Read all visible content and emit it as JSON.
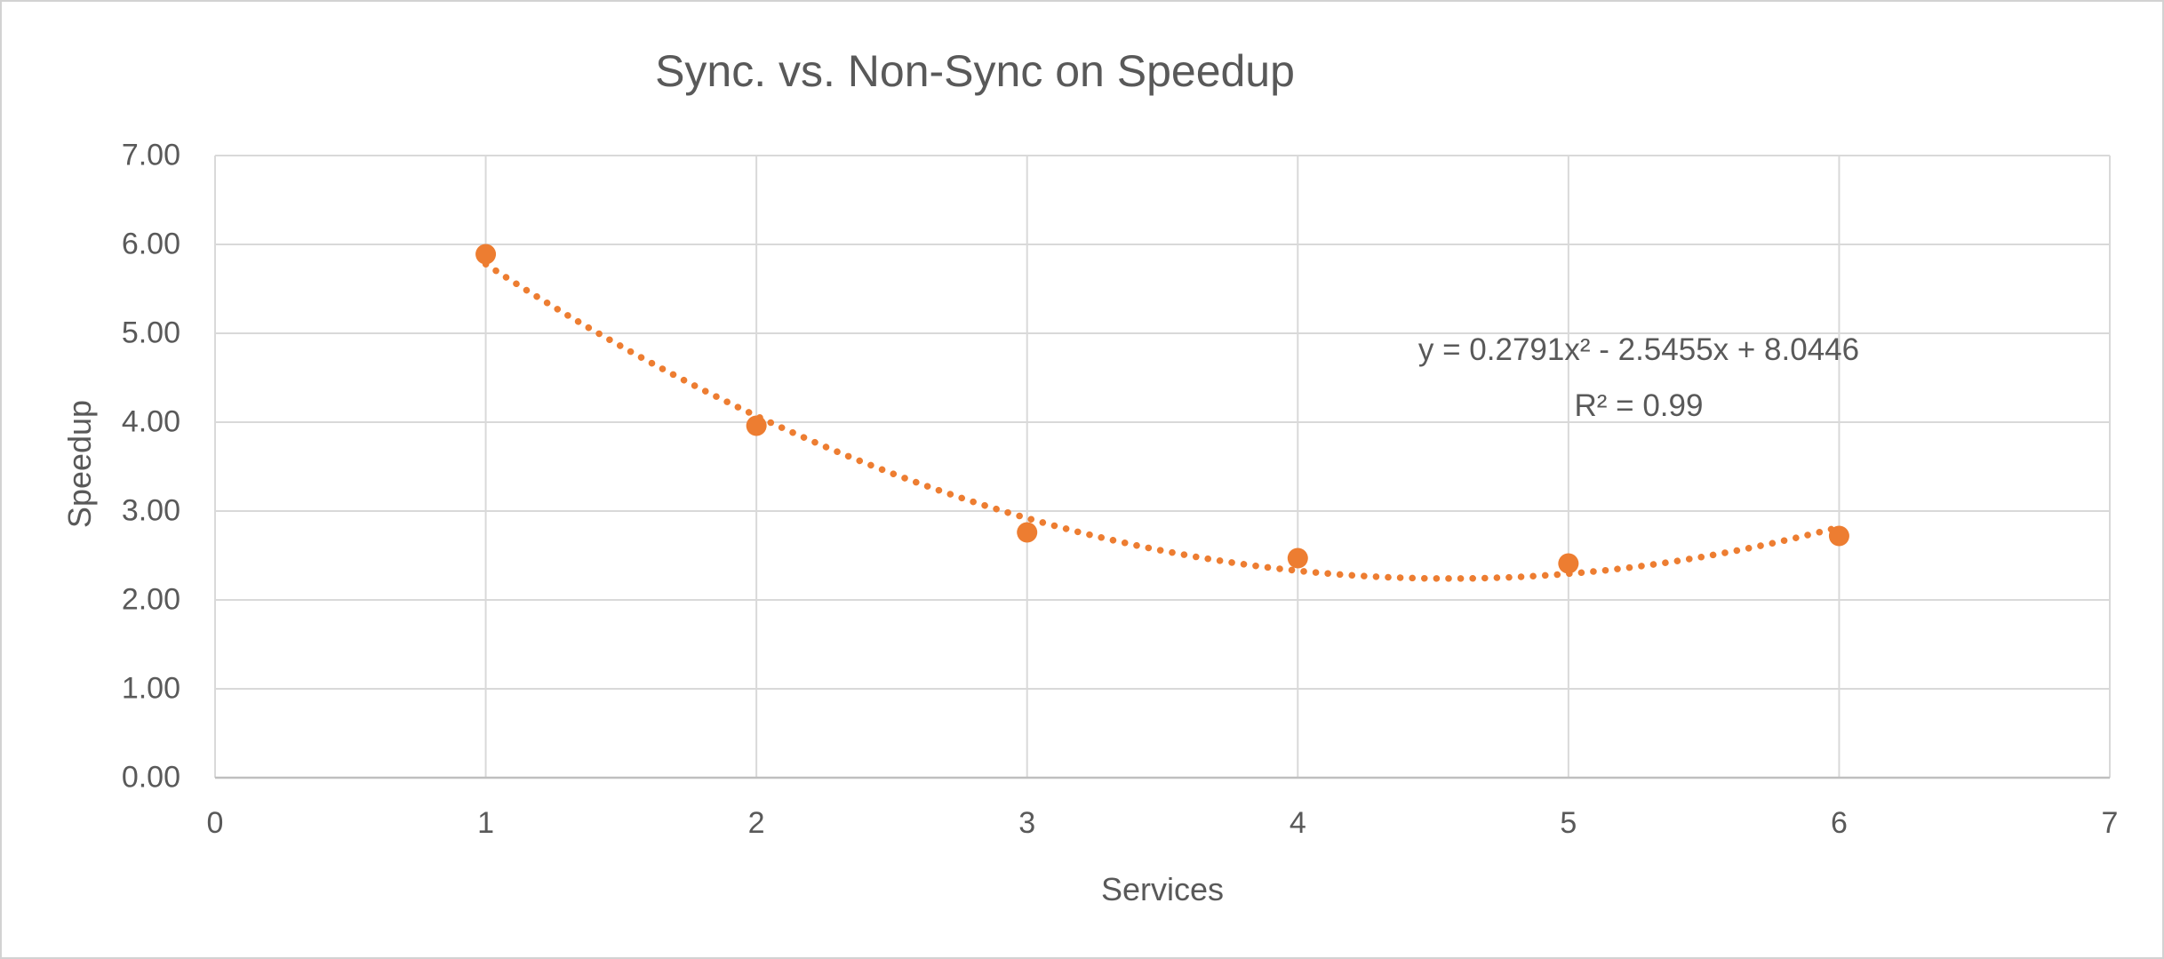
{
  "chart": {
    "title": "Sync. vs. Non-Sync on Speedup",
    "x_axis_title": "Services",
    "y_axis_title": "Speedup",
    "annotation": {
      "equation": "y = 0.2791x² - 2.5455x + 8.0446",
      "r_squared": "R² = 0.99"
    }
  },
  "chart_data": {
    "type": "scatter",
    "title": "Sync. vs. Non-Sync on Speedup",
    "xlabel": "Services",
    "ylabel": "Speedup",
    "x": [
      1,
      2,
      3,
      4,
      5,
      6
    ],
    "y": [
      5.89,
      3.96,
      2.76,
      2.47,
      2.41,
      2.72
    ],
    "xlim": [
      0,
      7
    ],
    "ylim": [
      0,
      7
    ],
    "x_ticks": [
      "0",
      "1",
      "2",
      "3",
      "4",
      "5",
      "6",
      "7"
    ],
    "y_ticks": [
      "0.00",
      "1.00",
      "2.00",
      "3.00",
      "4.00",
      "5.00",
      "6.00",
      "7.00"
    ],
    "grid": true,
    "legend": "none",
    "trendline": {
      "type": "polynomial",
      "order": 2,
      "coefficients": {
        "a": 0.2791,
        "b": -2.5455,
        "c": 8.0446
      },
      "equation_label": "y = 0.2791x² - 2.5455x + 8.0446",
      "r_squared_label": "R² = 0.99",
      "r_squared": 0.99,
      "x_range": [
        1,
        6
      ],
      "style": "dotted"
    },
    "colors": {
      "marker": "#ED7D31",
      "trendline": "#ED7D31",
      "gridline": "#D9D9D9",
      "axis_line": "#BFBFBF",
      "text": "#595959",
      "background": "#FFFFFF",
      "border": "#D2D2D2"
    }
  }
}
